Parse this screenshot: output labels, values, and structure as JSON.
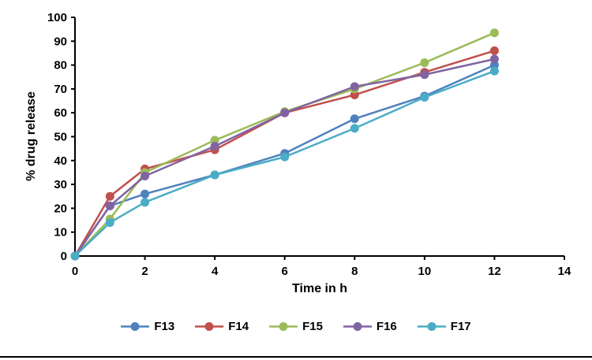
{
  "chart_data": {
    "type": "line",
    "title": "",
    "xlabel": "Time in h",
    "ylabel": "% drug release",
    "xlim": [
      0,
      14
    ],
    "ylim": [
      0,
      100
    ],
    "x_ticks": [
      0,
      2,
      4,
      6,
      8,
      10,
      12,
      14
    ],
    "y_ticks": [
      0,
      10,
      20,
      30,
      40,
      50,
      60,
      70,
      80,
      90,
      100
    ],
    "grid": false,
    "legend_position": "bottom",
    "marker": "circle",
    "axis_color": "#000000",
    "text_color": "#000000",
    "x": [
      0,
      1,
      2,
      4,
      6,
      8,
      10,
      12
    ],
    "series": [
      {
        "name": "F13",
        "color": "#4f81bd",
        "values": [
          0,
          21,
          26,
          34,
          43,
          57.5,
          67,
          80
        ]
      },
      {
        "name": "F14",
        "color": "#c0504d",
        "values": [
          0,
          25,
          36.5,
          44.5,
          60,
          67.5,
          77,
          86
        ]
      },
      {
        "name": "F15",
        "color": "#9bbb59",
        "values": [
          0,
          15.5,
          35,
          48.5,
          60.5,
          70,
          81,
          93.5
        ]
      },
      {
        "name": "F16",
        "color": "#8064a2",
        "values": [
          0,
          21,
          33.5,
          46,
          60,
          71,
          76,
          82.5
        ]
      },
      {
        "name": "F17",
        "color": "#4bacc6",
        "values": [
          0,
          14,
          22.5,
          34,
          41.5,
          53.5,
          66.5,
          77.5
        ]
      }
    ]
  }
}
